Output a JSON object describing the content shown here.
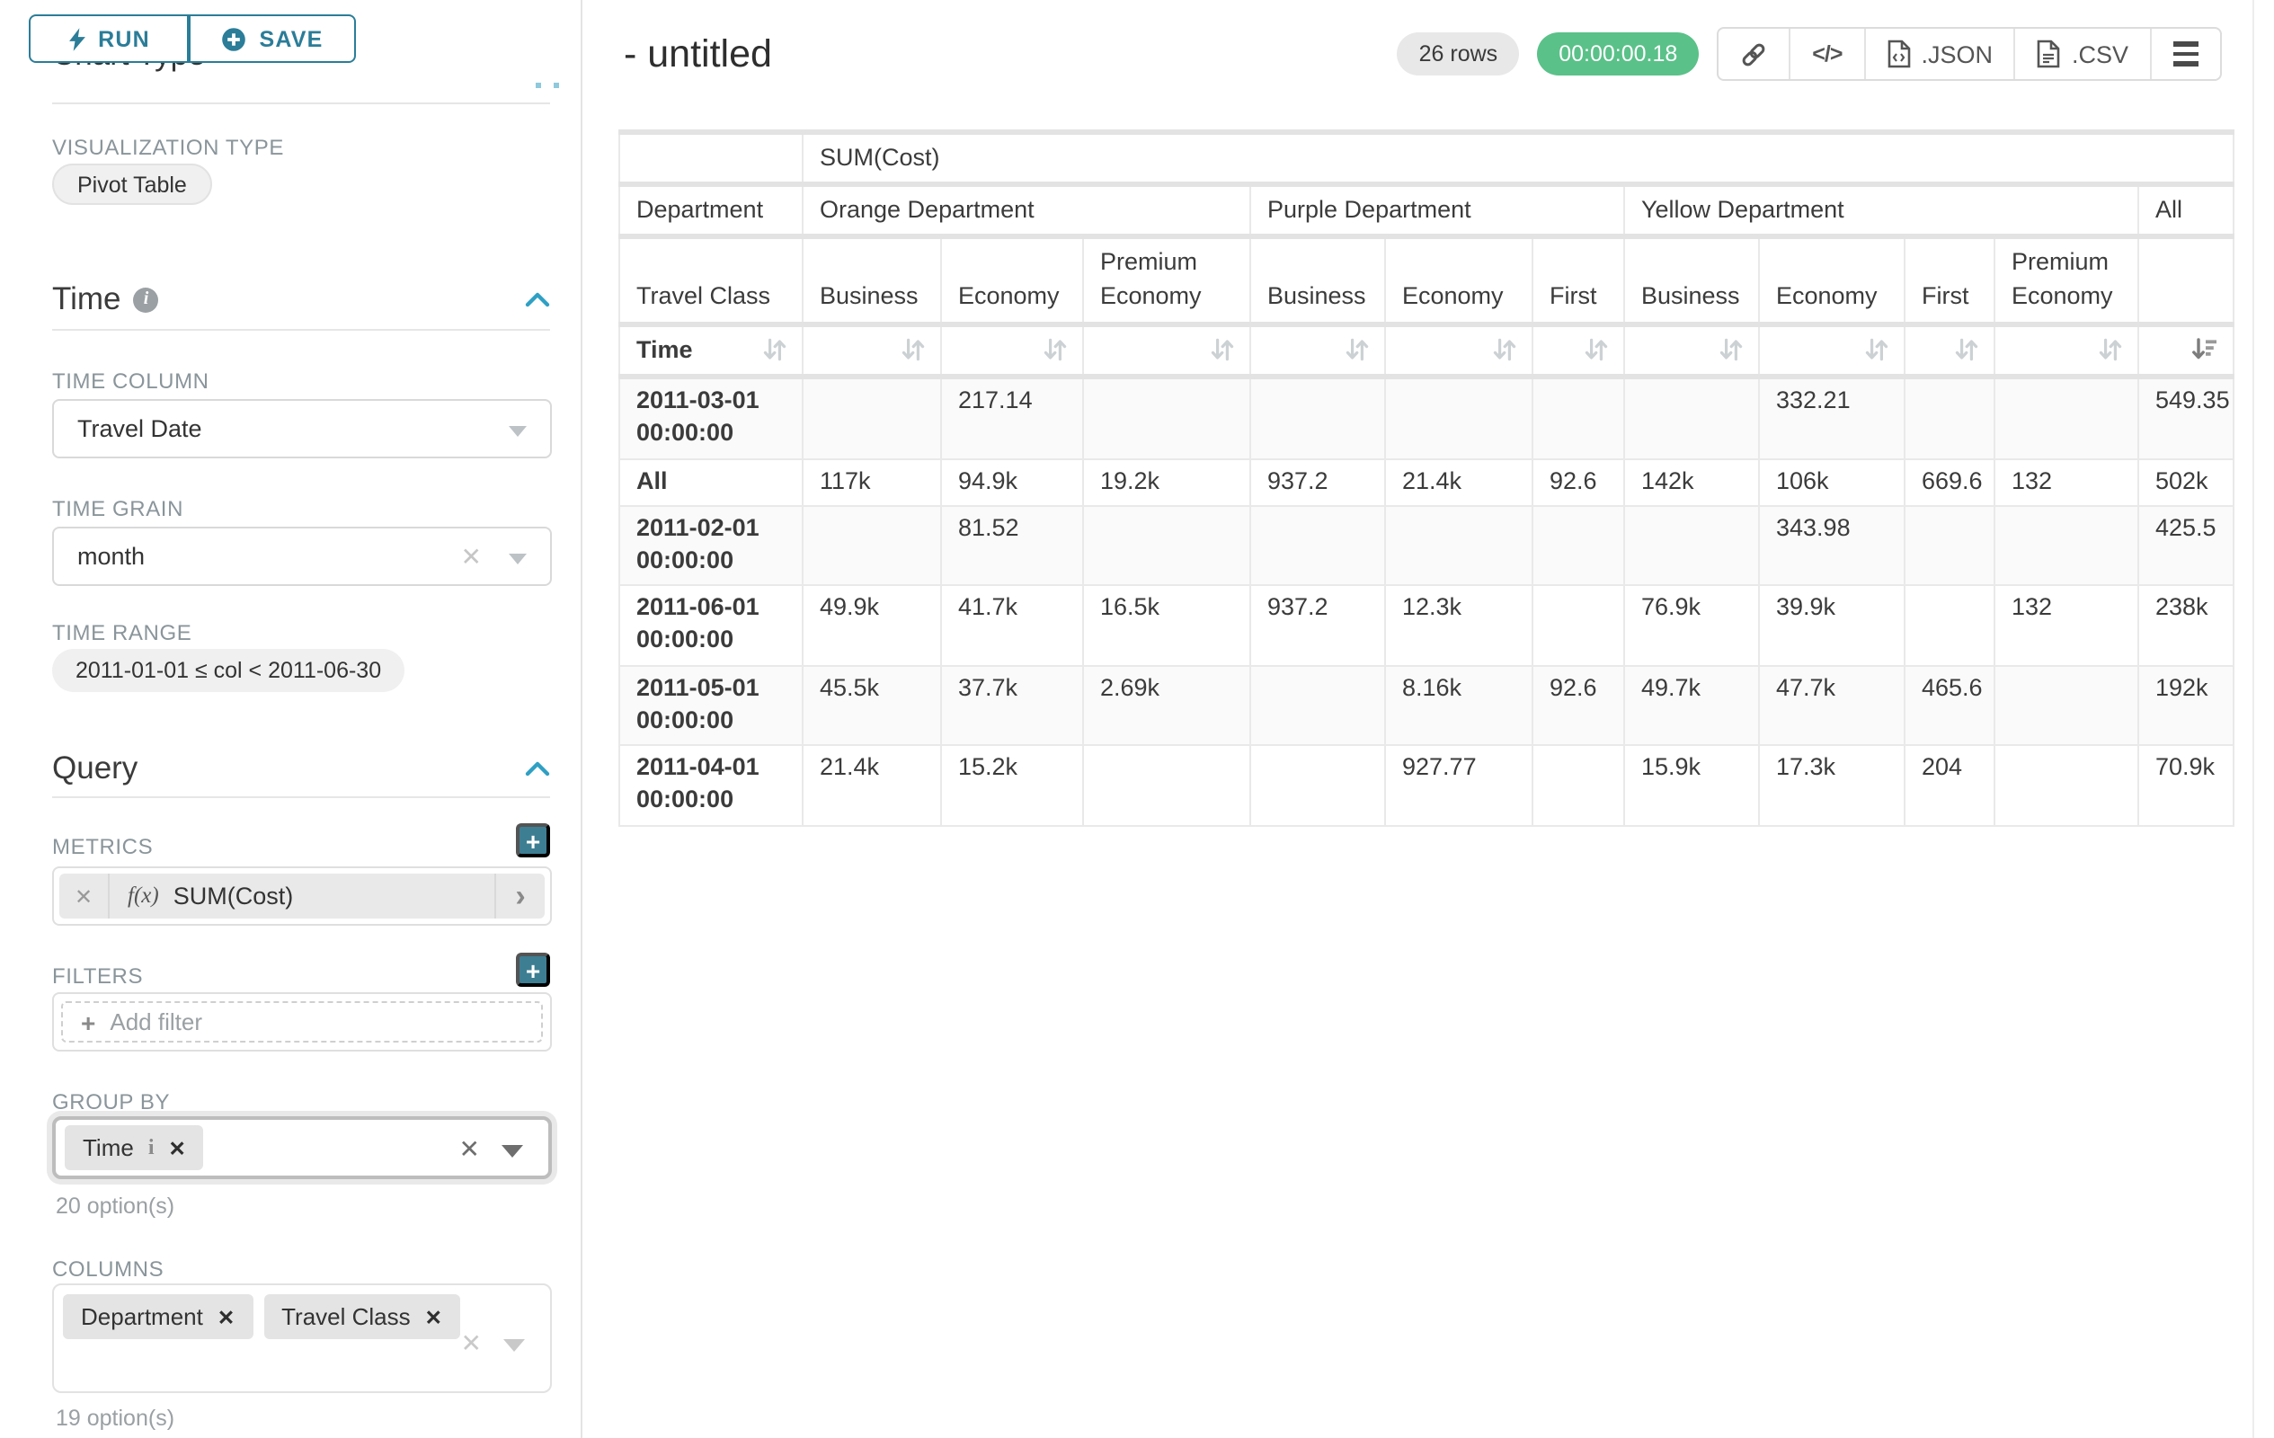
{
  "colors": {
    "accent_teal": "#2b7d98",
    "plus_button_teal": "#3d7e93",
    "success_green": "#5ac189",
    "chevron_blue": "#2fa0c4"
  },
  "panel": {
    "run": "RUN",
    "save": "SAVE",
    "chart_type_heading": "Chart Type",
    "viz_type_label": "VISUALIZATION TYPE",
    "viz_type_value": "Pivot Table",
    "time_heading": "Time",
    "time_column_label": "TIME COLUMN",
    "time_column_value": "Travel Date",
    "time_grain_label": "TIME GRAIN",
    "time_grain_value": "month",
    "time_range_label": "TIME RANGE",
    "time_range_value": "2011-01-01 ≤ col < 2011-06-30",
    "query_heading": "Query",
    "metrics_label": "METRICS",
    "metric_fx": "f(x)",
    "metric_value": "SUM(Cost)",
    "filters_label": "FILTERS",
    "add_filter_placeholder": "Add filter",
    "group_by_label": "GROUP BY",
    "group_by_chips": [
      {
        "label": "Time",
        "info": true
      }
    ],
    "group_by_options_hint": "20 option(s)",
    "columns_label": "COLUMNS",
    "columns_chips": [
      {
        "label": "Department"
      },
      {
        "label": "Travel Class"
      }
    ],
    "columns_options_hint": "19 option(s)"
  },
  "header": {
    "title": "- untitled",
    "row_count_badge": "26 rows",
    "duration_badge": "00:00:00.18",
    "export_json_label": ".JSON",
    "export_csv_label": ".CSV"
  },
  "chart_data": {
    "type": "table",
    "title": "SUM(Cost)",
    "row_dimension": "Time",
    "column_dimensions": [
      "Department",
      "Travel Class"
    ],
    "column_groups": [
      {
        "department": "Orange Department",
        "travel_classes": [
          "Business",
          "Economy",
          "Premium Economy"
        ]
      },
      {
        "department": "Purple Department",
        "travel_classes": [
          "Business",
          "Economy",
          "First"
        ]
      },
      {
        "department": "Yellow Department",
        "travel_classes": [
          "Business",
          "Economy",
          "First",
          "Premium Economy"
        ]
      },
      {
        "department": "All",
        "travel_classes": [
          ""
        ]
      }
    ],
    "rows": [
      {
        "time": "2011-03-01 00:00:00",
        "values": [
          "",
          "217.14",
          "",
          "",
          "",
          "",
          "",
          "332.21",
          "",
          "",
          "549.35"
        ]
      },
      {
        "time": "All",
        "values": [
          "117k",
          "94.9k",
          "19.2k",
          "937.2",
          "21.4k",
          "92.6",
          "142k",
          "106k",
          "669.6",
          "132",
          "502k"
        ]
      },
      {
        "time": "2011-02-01 00:00:00",
        "values": [
          "",
          "81.52",
          "",
          "",
          "",
          "",
          "",
          "343.98",
          "",
          "",
          "425.5"
        ]
      },
      {
        "time": "2011-06-01 00:00:00",
        "values": [
          "49.9k",
          "41.7k",
          "16.5k",
          "937.2",
          "12.3k",
          "",
          "76.9k",
          "39.9k",
          "",
          "132",
          "238k"
        ]
      },
      {
        "time": "2011-05-01 00:00:00",
        "values": [
          "45.5k",
          "37.7k",
          "2.69k",
          "",
          "8.16k",
          "92.6",
          "49.7k",
          "47.7k",
          "465.6",
          "",
          "192k"
        ]
      },
      {
        "time": "2011-04-01 00:00:00",
        "values": [
          "21.4k",
          "15.2k",
          "",
          "",
          "927.77",
          "",
          "15.9k",
          "17.3k",
          "204",
          "",
          "70.9k"
        ]
      }
    ],
    "sort": {
      "column": "All",
      "direction": "desc"
    }
  }
}
